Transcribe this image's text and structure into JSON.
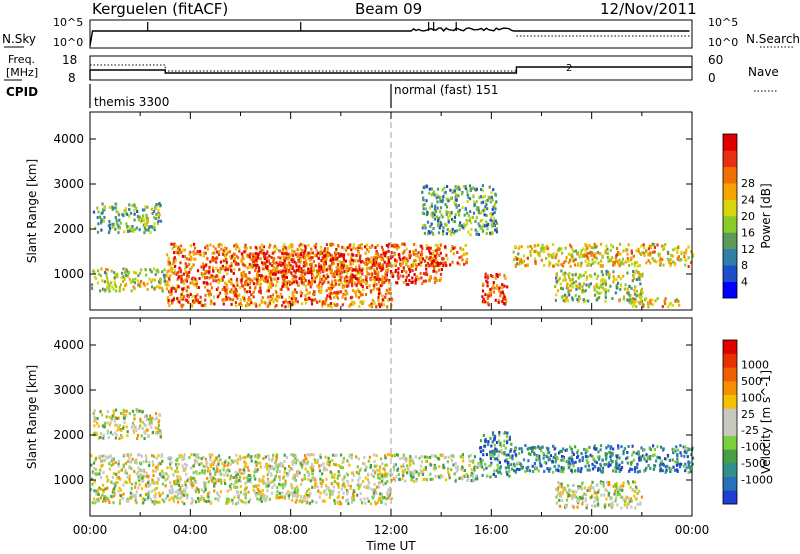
{
  "header": {
    "station": "Kerguelen (fitACF)",
    "beam": "Beam 09",
    "date": "12/Nov/2011"
  },
  "nsky": {
    "label": "N.Sky",
    "left_ticks": [
      "10^5",
      "10^0"
    ],
    "right_ticks": [
      "10^5",
      "10^0"
    ],
    "right_label": "N.Search"
  },
  "freq": {
    "label_line1": "Freq.",
    "label_line2": "[MHz]",
    "left_ticks": [
      "18",
      "8"
    ],
    "right_ticks": [
      "60",
      "0"
    ],
    "right_label": "Nave",
    "marker": "2"
  },
  "cpid": {
    "label": "CPID",
    "modes": [
      "themis 3300",
      "normal (fast) 151"
    ]
  },
  "time_axis": {
    "title": "Time UT",
    "ticks": [
      "00:00",
      "04:00",
      "08:00",
      "12:00",
      "16:00",
      "20:00",
      "00:00"
    ]
  },
  "chart_data": [
    {
      "type": "heatmap",
      "title": "",
      "xlabel": "Time UT",
      "ylabel": "Slant Range [km]",
      "x_range_hours": [
        0,
        24
      ],
      "ylim": [
        200,
        4600
      ],
      "y_ticks": [
        1000,
        2000,
        3000,
        4000
      ],
      "colorbar": {
        "label": "Power [dB]",
        "ticks": [
          4,
          8,
          12,
          16,
          20,
          24,
          28
        ],
        "colors": [
          "#0000ff",
          "#1f4fc8",
          "#2f7fa8",
          "#5a9a5a",
          "#8acb2a",
          "#d6d60e",
          "#f5a400",
          "#f07000",
          "#e83010",
          "#e00000"
        ]
      },
      "echo_regions": [
        {
          "t0": 0.0,
          "t1": 3.0,
          "r0": 650,
          "r1": 1150,
          "level": 0.5
        },
        {
          "t0": 0.1,
          "t1": 2.8,
          "r0": 1950,
          "r1": 2600,
          "level": 0.4
        },
        {
          "t0": 3.0,
          "t1": 12.0,
          "r0": 300,
          "r1": 1700,
          "level": 0.75
        },
        {
          "t0": 6.0,
          "t1": 14.0,
          "r0": 800,
          "r1": 1500,
          "level": 0.85
        },
        {
          "t0": 12.0,
          "t1": 15.0,
          "r0": 1200,
          "r1": 1700,
          "level": 0.75
        },
        {
          "t0": 13.2,
          "t1": 16.2,
          "r0": 1900,
          "r1": 3000,
          "level": 0.35
        },
        {
          "t0": 15.6,
          "t1": 16.6,
          "r0": 350,
          "r1": 1050,
          "level": 0.85
        },
        {
          "t0": 16.8,
          "t1": 24.0,
          "r0": 1200,
          "r1": 1700,
          "level": 0.6
        },
        {
          "t0": 18.5,
          "t1": 22.0,
          "r0": 400,
          "r1": 1100,
          "level": 0.45
        },
        {
          "t0": 21.5,
          "t1": 23.5,
          "r0": 300,
          "r1": 500,
          "level": 0.6
        }
      ]
    },
    {
      "type": "heatmap",
      "title": "",
      "xlabel": "Time UT",
      "ylabel": "Slant Range [km]",
      "x_range_hours": [
        0,
        24
      ],
      "ylim": [
        200,
        4600
      ],
      "y_ticks": [
        1000,
        2000,
        3000,
        4000
      ],
      "colorbar": {
        "label": "Velocity [m s^-1]",
        "ticks": [
          1000,
          500,
          100,
          25,
          -25,
          -100,
          -500,
          -1000
        ],
        "colors": [
          "#1f3fd0",
          "#2870b8",
          "#2f8f8a",
          "#47a047",
          "#7ccf3c",
          "#c8c8c0",
          "#c8c8c0",
          "#f5c000",
          "#f59000",
          "#f06000",
          "#e83000",
          "#e00000"
        ]
      },
      "echo_regions": [
        {
          "t0": 0.0,
          "t1": 12.0,
          "r0": 500,
          "r1": 1600,
          "level": 0.5
        },
        {
          "t0": 0.1,
          "t1": 2.8,
          "r0": 1950,
          "r1": 2600,
          "level": 0.5
        },
        {
          "t0": 12.0,
          "t1": 15.5,
          "r0": 1000,
          "r1": 1600,
          "level": 0.45
        },
        {
          "t0": 15.5,
          "t1": 16.8,
          "r0": 1100,
          "r1": 2100,
          "level": 0.2
        },
        {
          "t0": 16.8,
          "t1": 24.0,
          "r0": 1200,
          "r1": 1800,
          "level": 0.2
        },
        {
          "t0": 18.5,
          "t1": 22.0,
          "r0": 400,
          "r1": 1000,
          "level": 0.5
        }
      ]
    }
  ]
}
